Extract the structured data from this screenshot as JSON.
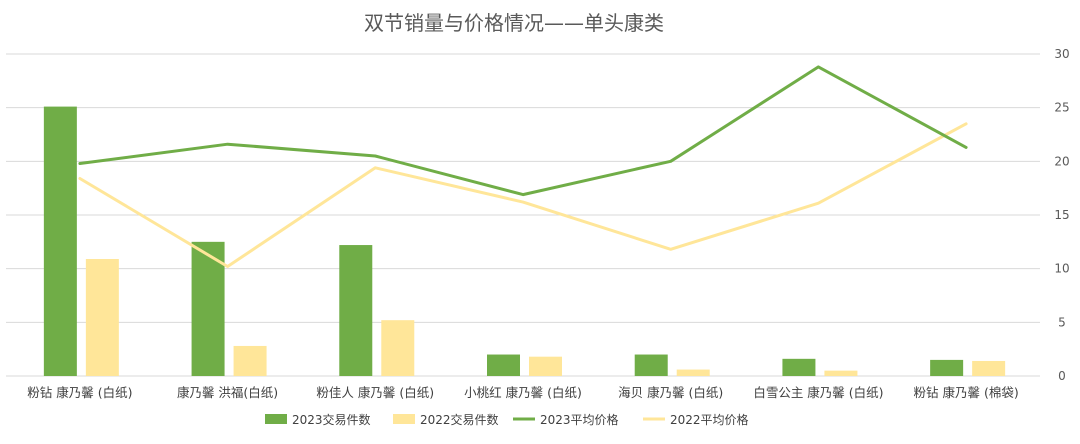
{
  "chart_data": {
    "type": "bar",
    "title": "双节销量与价格情况——单头康类",
    "categories": [
      "粉钻 康乃馨 (白纸)",
      "康乃馨 洪福(白纸)",
      "粉佳人 康乃馨 (白纸)",
      "小桃红 康乃馨 (白纸)",
      "海贝 康乃馨 (白纸)",
      "白雪公主 康乃馨 (白纸)",
      "粉钻 康乃馨 (棉袋)"
    ],
    "ylim": [
      0,
      30
    ],
    "yticks": [
      "0",
      "5",
      "10",
      "15",
      "20",
      "25",
      "30"
    ],
    "grid": true,
    "legend_position": "bottom",
    "series": [
      {
        "name": "2023交易件数",
        "kind": "bar",
        "color": "#70ad47",
        "values": [
          25.1,
          12.5,
          12.2,
          2.0,
          2.0,
          1.6,
          1.5
        ]
      },
      {
        "name": "2022交易件数",
        "kind": "bar",
        "color": "#ffe699",
        "values": [
          10.9,
          2.8,
          5.2,
          1.8,
          0.6,
          0.5,
          1.4
        ]
      },
      {
        "name": "2023平均价格",
        "kind": "line",
        "color": "#70ad47",
        "values": [
          19.8,
          21.6,
          20.5,
          16.9,
          20.0,
          28.8,
          21.3
        ]
      },
      {
        "name": "2022平均价格",
        "kind": "line",
        "color": "#ffe699",
        "values": [
          18.4,
          10.2,
          19.4,
          16.2,
          11.8,
          16.1,
          23.5
        ]
      }
    ]
  }
}
